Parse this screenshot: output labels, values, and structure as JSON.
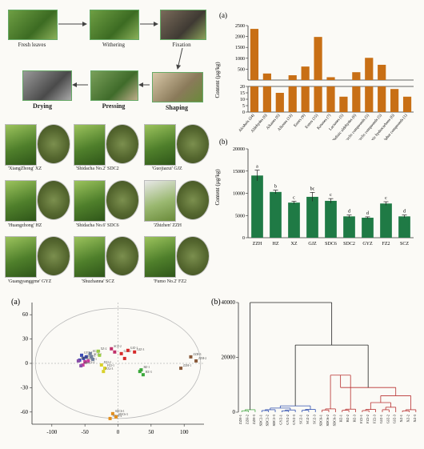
{
  "process": {
    "steps": [
      {
        "label": "Fresh leaves"
      },
      {
        "label": "Withering"
      },
      {
        "label": "Fixation"
      },
      {
        "label": "Shaping"
      },
      {
        "label": "Pressing"
      },
      {
        "label": "Drying"
      }
    ]
  },
  "cultivars": [
    {
      "label": "'XiangZhong' XZ"
    },
    {
      "label": "'Shidacha No.2' SDC2"
    },
    {
      "label": "'Guojiazui' GJZ"
    },
    {
      "label": "'Huangzhong' HZ"
    },
    {
      "label": "'Shidacha No.6' SDC6"
    },
    {
      "label": "'Zhizhen' ZZH"
    },
    {
      "label": "'Guangyanggrne' GYZ"
    },
    {
      "label": "'Shuzhanna' SCZ"
    },
    {
      "label": "'Fumo No.2' FZ2"
    }
  ],
  "chart_data": [
    {
      "type": "bar",
      "panel_label": "(a)",
      "ylabel": "Content (µg/kg)",
      "categories": [
        "Alcohols (24)",
        "Aldehydes (6)",
        "Alkanes (6)",
        "Alkenes (13)",
        "Esters (9)",
        "Esters (15)",
        "Ketones (7)",
        "Lactones (5)",
        "Olefinic aldehydes (6)",
        "Oxygen heterocyclic compounds (5)",
        "Nitrogen heterocyclic compounds (5)",
        "Aromatic hydrocarbons (6)",
        "Sulphur compounds (1)"
      ],
      "values": [
        2350,
        300,
        15,
        220,
        620,
        1980,
        130,
        12,
        360,
        1020,
        700,
        18,
        12
      ],
      "upper_ticks": [
        "0",
        "500",
        "1000",
        "1500",
        "2000",
        "2500"
      ],
      "lower_ticks": [
        "0",
        "5",
        "10",
        "15",
        "20"
      ],
      "color": "#c86f15"
    },
    {
      "type": "bar",
      "panel_label": "(b)",
      "ylabel": "Content (µg/kg)",
      "categories": [
        "ZZH",
        "HZ",
        "XZ",
        "GJZ",
        "SDC6",
        "SDC2",
        "GYZ",
        "FZ2",
        "SCZ"
      ],
      "values": [
        14000,
        10300,
        7900,
        9200,
        8300,
        4800,
        4500,
        7700,
        4800
      ],
      "errors": [
        1200,
        400,
        300,
        1000,
        500,
        300,
        200,
        400,
        300
      ],
      "letters": [
        "a",
        "b",
        "c",
        "bc",
        "c",
        "d",
        "d",
        "c",
        "d"
      ],
      "yticks": [
        "0",
        "5000",
        "10000",
        "15000",
        "20000"
      ],
      "ylim": [
        0,
        20000
      ],
      "color": "#1f7a45"
    },
    {
      "type": "scatter",
      "panel_label": "(a)",
      "xticks": [
        "-100",
        "-50",
        "0",
        "50",
        "100"
      ],
      "yticks": [
        "-60",
        "-30",
        "0",
        "30",
        "60"
      ],
      "xlim": [
        -130,
        130
      ],
      "ylim": [
        -75,
        75
      ],
      "groups": [
        {
          "color": "#3b4bb5",
          "points": [
            [
              -55,
              10,
              "GYZ-2"
            ],
            [
              -52,
              6,
              "SDC2-3"
            ],
            [
              -48,
              8,
              ""
            ],
            [
              -58,
              4,
              "GYZ-3"
            ]
          ]
        },
        {
          "color": "#cc3d9e",
          "points": [
            [
              -50,
              2,
              "SDC2-1"
            ],
            [
              -53,
              -2,
              "SDC2-2"
            ],
            [
              -45,
              3,
              ""
            ]
          ]
        },
        {
          "color": "#8a50a8",
          "points": [
            [
              -60,
              3,
              "XZ-3"
            ],
            [
              -56,
              -3,
              "XZ-1"
            ]
          ]
        },
        {
          "color": "#6f7f9e",
          "points": [
            [
              -42,
              12,
              "SCZ-3"
            ],
            [
              -40,
              8,
              "SCZ-1"
            ],
            [
              -38,
              5,
              ""
            ]
          ]
        },
        {
          "color": "#9bcf43",
          "points": [
            [
              -30,
              15,
              "XZ-2"
            ],
            [
              -28,
              10,
              ""
            ]
          ]
        },
        {
          "color": "#d9d12a",
          "points": [
            [
              -25,
              -2,
              "FZ2-2"
            ],
            [
              -20,
              -6,
              "FZ2-1"
            ],
            [
              -22,
              -10,
              "FZ2-3"
            ]
          ]
        },
        {
          "color": "#d62a2a",
          "points": [
            [
              5,
              12,
              "GJZ-2"
            ],
            [
              15,
              16,
              "GJZ-1"
            ],
            [
              25,
              14,
              "GJZ-3"
            ],
            [
              10,
              6,
              ""
            ]
          ]
        },
        {
          "color": "#c0306a",
          "points": [
            [
              -10,
              18,
              "SCZ-2"
            ],
            [
              -5,
              14,
              ""
            ]
          ]
        },
        {
          "color": "#3aa83a",
          "points": [
            [
              35,
              -8,
              "HZ-1"
            ],
            [
              38,
              -14,
              "HZ-3"
            ],
            [
              33,
              -10,
              ""
            ]
          ]
        },
        {
          "color": "#e38f1e",
          "points": [
            [
              -8,
              -62,
              "SDC6-1"
            ],
            [
              -12,
              -68,
              "SDC6-2"
            ],
            [
              -3,
              -66,
              "SDC6-3"
            ]
          ]
        },
        {
          "color": "#8a5a3a",
          "points": [
            [
              110,
              8,
              "ZZH-3"
            ],
            [
              118,
              3,
              "ZZH-2"
            ],
            [
              95,
              -6,
              "ZZH-1"
            ]
          ]
        }
      ]
    },
    {
      "type": "dendrogram",
      "panel_label": "(b)",
      "yticks": [
        "0",
        "20000",
        "40000"
      ],
      "ylim": [
        0,
        40000
      ],
      "leaves": [
        "ZZH-1",
        "ZZH-2",
        "ZZH-3",
        "SDC2-1",
        "SDC2-2",
        "SDC2-3",
        "GYZ-1",
        "GYZ-2",
        "GYZ-3",
        "SCZ-1",
        "SCZ-2",
        "SCZ-3",
        "SDC6-1",
        "SDC6-2",
        "SDC6-3",
        "HZ-1",
        "HZ-2",
        "HZ-3",
        "FZ2-1",
        "FZ2-2",
        "FZ2-3",
        "GJZ-1",
        "GJZ-2",
        "GJZ-3",
        "XZ-1",
        "XZ-2",
        "XZ-3"
      ],
      "colors": {
        "green": "#4aaa4a",
        "blue": "#3050b0",
        "red": "#b83030",
        "black": "#222222"
      }
    }
  ]
}
